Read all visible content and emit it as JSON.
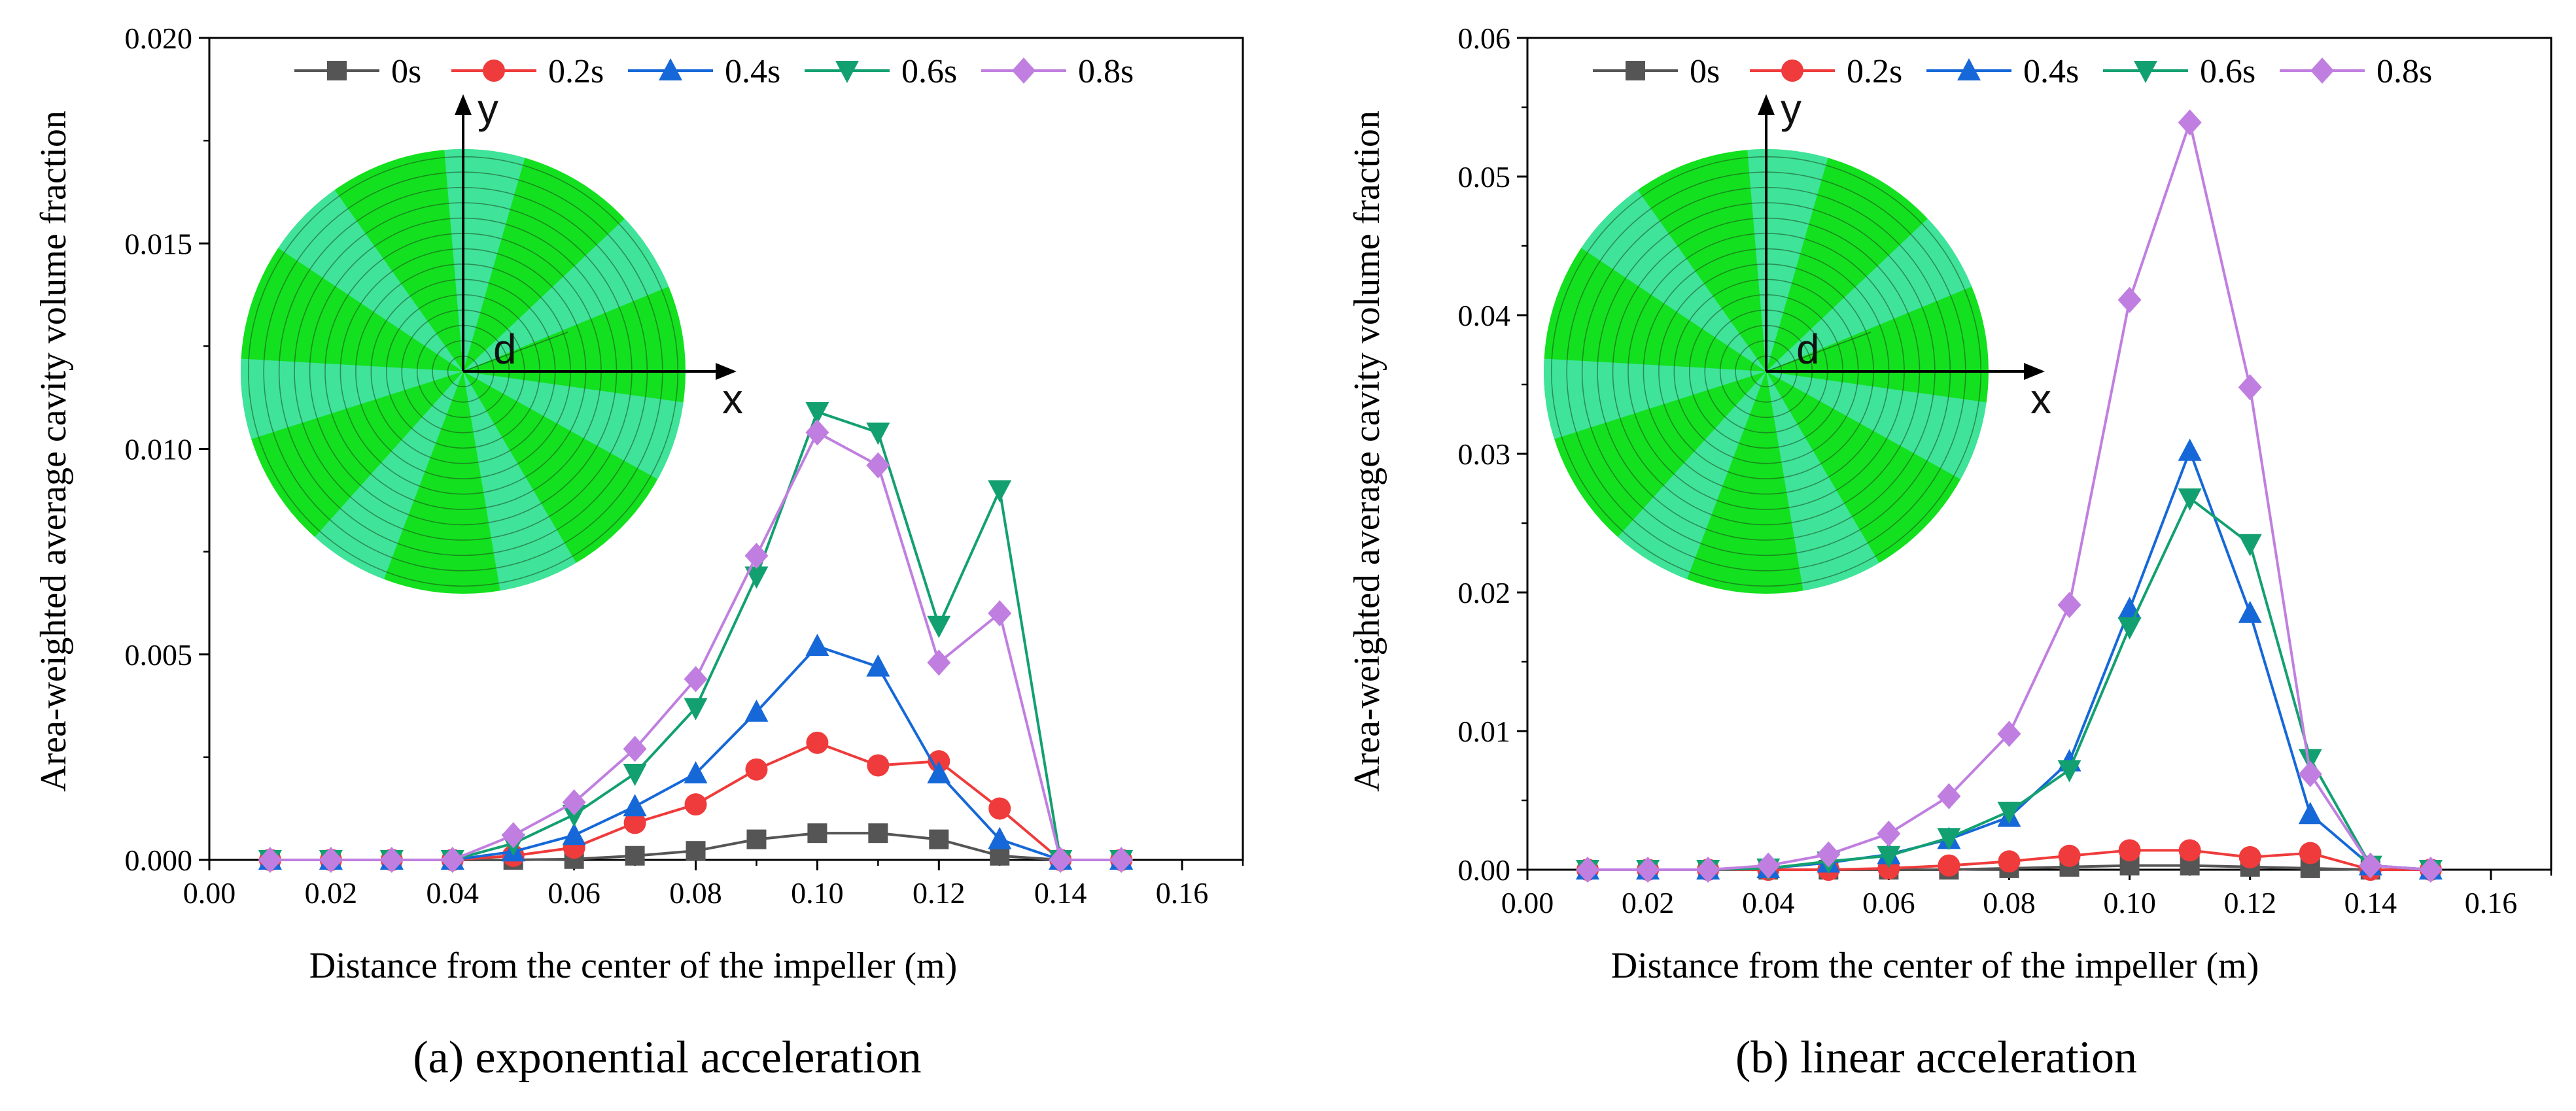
{
  "colors": {
    "0s": "#555555",
    "0.2s": "#ef3b3b",
    "0.4s": "#1668d8",
    "0.6s": "#13a070",
    "0.8s": "#c07fe0",
    "disk_dark": "#13e01e",
    "disk_light": "#3fe39a"
  },
  "inset": {
    "x_label": "x",
    "y_label": "y",
    "d_label": "d"
  },
  "chart_data": [
    {
      "type": "line",
      "caption": "(a) exponential acceleration",
      "xlabel": "Distance from the center of the impeller (m)",
      "ylabel": "Area-weighted average cavity volume fraction",
      "xlim": [
        0.0,
        0.17
      ],
      "ylim": [
        0.0,
        0.02
      ],
      "x_ticks": [
        "0.00",
        "0.02",
        "0.04",
        "0.06",
        "0.08",
        "0.10",
        "0.12",
        "0.14",
        "0.16"
      ],
      "y_ticks": [
        "0.000",
        "0.005",
        "0.010",
        "0.015",
        "0.020"
      ],
      "legend_position": "top",
      "x": [
        0.01,
        0.02,
        0.03,
        0.04,
        0.05,
        0.06,
        0.07,
        0.08,
        0.09,
        0.1,
        0.11,
        0.12,
        0.13,
        0.14,
        0.15
      ],
      "series": [
        {
          "name": "0s",
          "marker": "square",
          "values": [
            0,
            0,
            0,
            0,
            0,
            2e-05,
            0.0001,
            0.00022,
            0.0005,
            0.00065,
            0.00065,
            0.0005,
            0.0001,
            0,
            0
          ]
        },
        {
          "name": "0.2s",
          "marker": "circle",
          "values": [
            0,
            0,
            0,
            0,
            0.0001,
            0.0003,
            0.0009,
            0.00135,
            0.0022,
            0.00285,
            0.0023,
            0.0024,
            0.00125,
            0,
            0
          ]
        },
        {
          "name": "0.4s",
          "marker": "triangle-up",
          "values": [
            0,
            0,
            0,
            0,
            0.0002,
            0.0006,
            0.0013,
            0.0021,
            0.0036,
            0.0052,
            0.0047,
            0.0021,
            0.0005,
            0,
            0
          ]
        },
        {
          "name": "0.6s",
          "marker": "triangle-down",
          "values": [
            0,
            0,
            0,
            0,
            0.0004,
            0.0011,
            0.0021,
            0.0037,
            0.0069,
            0.0109,
            0.0104,
            0.0057,
            0.009,
            0,
            0
          ]
        },
        {
          "name": "0.8s",
          "marker": "diamond",
          "values": [
            0,
            0,
            0,
            0,
            0.0006,
            0.0014,
            0.0027,
            0.0044,
            0.0074,
            0.0104,
            0.0096,
            0.0048,
            0.006,
            0,
            0
          ]
        }
      ]
    },
    {
      "type": "line",
      "caption": "(b) linear acceleration",
      "xlabel": "Distance from the center of the impeller (m)",
      "ylabel": "Area-weighted average cavity volume fraction",
      "xlim": [
        0.0,
        0.17
      ],
      "ylim": [
        0.0,
        0.06
      ],
      "x_ticks": [
        "0.00",
        "0.02",
        "0.04",
        "0.06",
        "0.08",
        "0.10",
        "0.12",
        "0.14",
        "0.16"
      ],
      "y_ticks": [
        "0.00",
        "0.01",
        "0.02",
        "0.03",
        "0.04",
        "0.05",
        "0.06"
      ],
      "legend_position": "top",
      "x": [
        0.01,
        0.02,
        0.03,
        0.04,
        0.05,
        0.06,
        0.07,
        0.08,
        0.09,
        0.1,
        0.11,
        0.12,
        0.13,
        0.14,
        0.15
      ],
      "series": [
        {
          "name": "0s",
          "marker": "square",
          "values": [
            0,
            0,
            0,
            0,
            0,
            0,
            0,
            0.0001,
            0.0002,
            0.0003,
            0.0003,
            0.0002,
            0.0001,
            0,
            0
          ]
        },
        {
          "name": "0.2s",
          "marker": "circle",
          "values": [
            0,
            0,
            0,
            0,
            0,
            0.0001,
            0.0003,
            0.0006,
            0.001,
            0.0014,
            0.0014,
            0.0009,
            0.0012,
            0,
            0
          ]
        },
        {
          "name": "0.4s",
          "marker": "triangle-up",
          "values": [
            0,
            0,
            0,
            0.0001,
            0.0005,
            0.0011,
            0.0022,
            0.0038,
            0.0078,
            0.0188,
            0.0302,
            0.0185,
            0.004,
            0.0003,
            0
          ]
        },
        {
          "name": "0.6s",
          "marker": "triangle-down",
          "values": [
            0,
            0,
            0,
            0.0001,
            0.0006,
            0.001,
            0.0023,
            0.0042,
            0.0072,
            0.0175,
            0.0268,
            0.0235,
            0.008,
            0.0003,
            0
          ]
        },
        {
          "name": "0.8s",
          "marker": "diamond",
          "values": [
            0,
            0,
            0,
            0.0003,
            0.0011,
            0.0026,
            0.0053,
            0.0098,
            0.0191,
            0.0411,
            0.0539,
            0.0348,
            0.0069,
            0.0003,
            0
          ]
        }
      ]
    }
  ]
}
